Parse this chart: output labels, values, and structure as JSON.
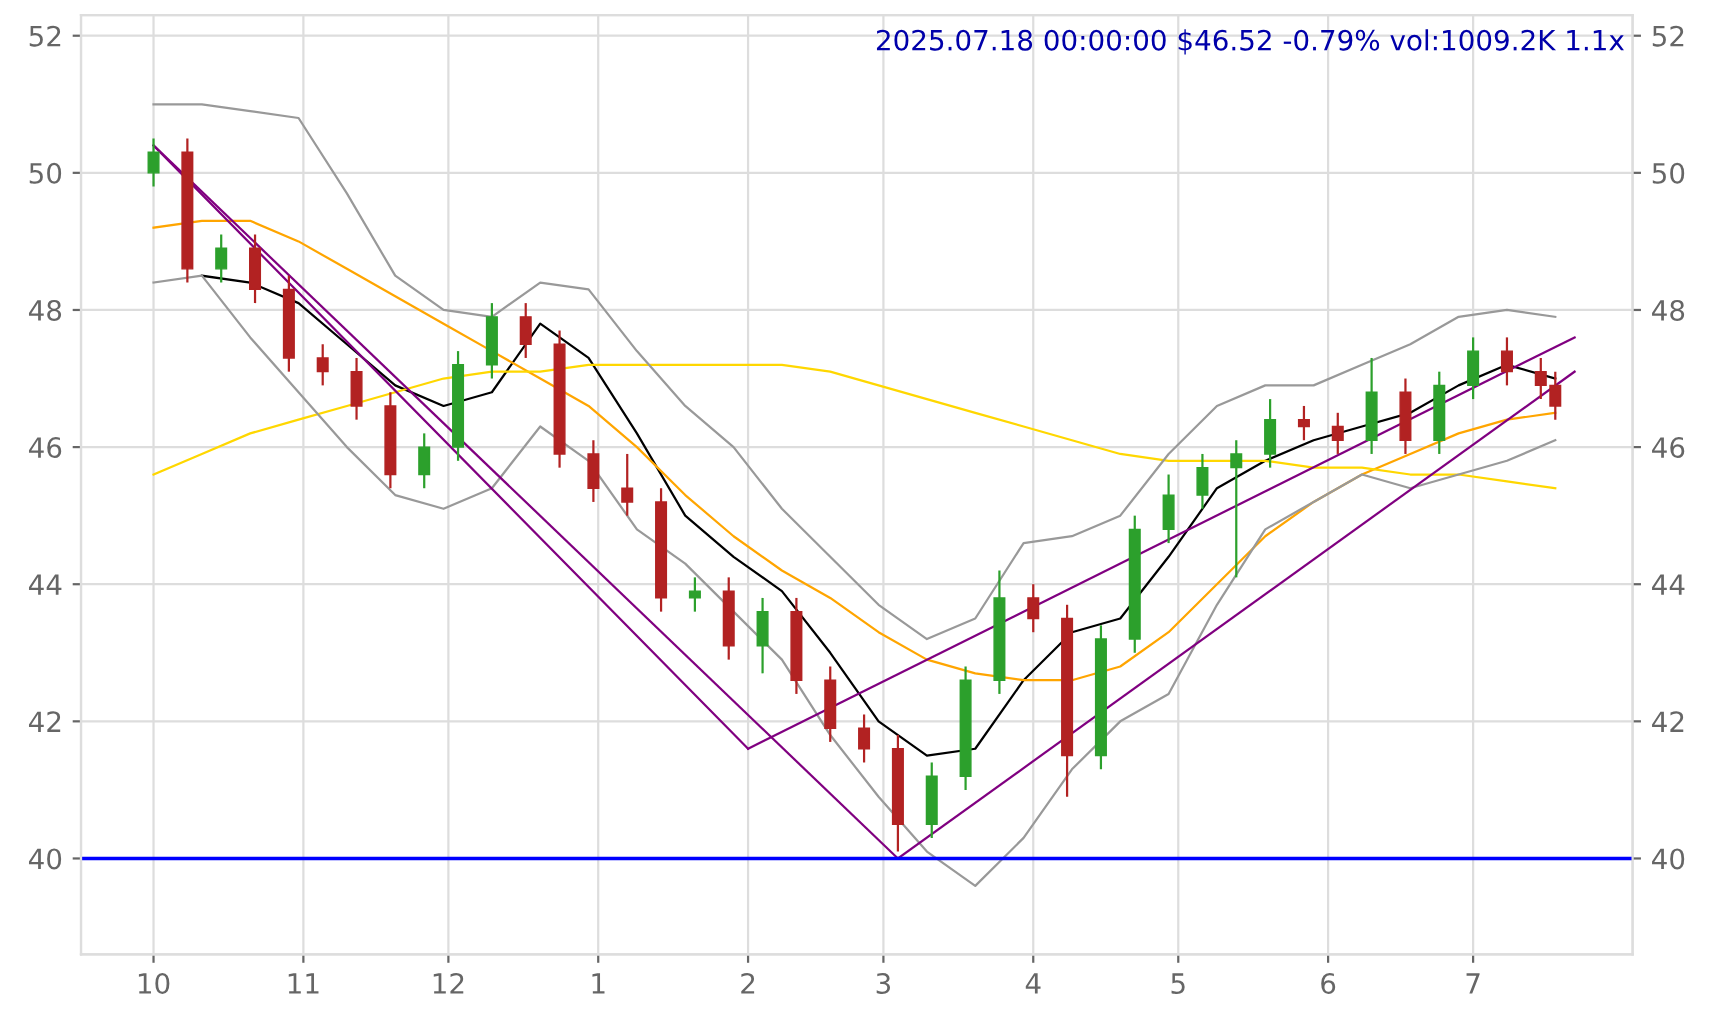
{
  "chart_data": {
    "type": "candlestick",
    "annotations": [
      "2025.07.18 00:00:00 $46.52 -0.79% vol:1009.2K 1.1x"
    ],
    "x": [
      "2024-10-01",
      "2024-10-08",
      "2024-10-15",
      "2024-10-22",
      "2024-10-29",
      "2024-11-05",
      "2024-11-12",
      "2024-11-19",
      "2024-11-26",
      "2024-12-03",
      "2024-12-10",
      "2024-12-17",
      "2024-12-24",
      "2024-12-31",
      "2025-01-07",
      "2025-01-14",
      "2025-01-21",
      "2025-01-28",
      "2025-02-04",
      "2025-02-11",
      "2025-02-18",
      "2025-02-25",
      "2025-03-04",
      "2025-03-11",
      "2025-03-18",
      "2025-03-25",
      "2025-04-01",
      "2025-04-08",
      "2025-04-15",
      "2025-04-22",
      "2025-04-29",
      "2025-05-06",
      "2025-05-13",
      "2025-05-20",
      "2025-05-27",
      "2025-06-03",
      "2025-06-10",
      "2025-06-17",
      "2025-06-24",
      "2025-07-01",
      "2025-07-08",
      "2025-07-15",
      "2025-07-18"
    ],
    "ohlc": [
      [
        50.0,
        50.5,
        49.8,
        50.3
      ],
      [
        50.3,
        50.5,
        48.4,
        48.6
      ],
      [
        48.6,
        49.1,
        48.4,
        48.9
      ],
      [
        48.9,
        49.1,
        48.1,
        48.3
      ],
      [
        48.3,
        48.5,
        47.1,
        47.3
      ],
      [
        47.3,
        47.5,
        46.9,
        47.1
      ],
      [
        47.1,
        47.3,
        46.4,
        46.6
      ],
      [
        46.6,
        46.8,
        45.4,
        45.6
      ],
      [
        45.6,
        46.2,
        45.4,
        46.0
      ],
      [
        46.0,
        47.4,
        45.8,
        47.2
      ],
      [
        47.2,
        48.1,
        47.0,
        47.9
      ],
      [
        47.9,
        48.1,
        47.3,
        47.5
      ],
      [
        47.5,
        47.7,
        45.7,
        45.9
      ],
      [
        45.9,
        46.1,
        45.2,
        45.4
      ],
      [
        45.4,
        45.9,
        45.0,
        45.2
      ],
      [
        45.2,
        45.4,
        43.6,
        43.8
      ],
      [
        43.8,
        44.1,
        43.6,
        43.9
      ],
      [
        43.9,
        44.1,
        42.9,
        43.1
      ],
      [
        43.1,
        43.8,
        42.7,
        43.6
      ],
      [
        43.6,
        43.8,
        42.4,
        42.6
      ],
      [
        42.6,
        42.8,
        41.7,
        41.9
      ],
      [
        41.9,
        42.1,
        41.4,
        41.6
      ],
      [
        41.6,
        41.8,
        40.1,
        40.5
      ],
      [
        40.5,
        41.4,
        40.3,
        41.2
      ],
      [
        41.2,
        42.8,
        41.0,
        42.6
      ],
      [
        42.6,
        44.2,
        42.4,
        43.8
      ],
      [
        43.8,
        44.0,
        43.3,
        43.5
      ],
      [
        43.5,
        43.7,
        40.9,
        41.5
      ],
      [
        41.5,
        43.4,
        41.3,
        43.2
      ],
      [
        43.2,
        45.0,
        43.0,
        44.8
      ],
      [
        44.8,
        45.6,
        44.6,
        45.3
      ],
      [
        45.3,
        45.9,
        45.1,
        45.7
      ],
      [
        45.7,
        46.1,
        44.1,
        45.9
      ],
      [
        45.9,
        46.7,
        45.7,
        46.4
      ],
      [
        46.4,
        46.6,
        46.1,
        46.3
      ],
      [
        46.3,
        46.5,
        45.9,
        46.1
      ],
      [
        46.1,
        47.3,
        45.9,
        46.8
      ],
      [
        46.8,
        47.0,
        45.9,
        46.1
      ],
      [
        46.1,
        47.1,
        45.9,
        46.9
      ],
      [
        46.9,
        47.6,
        46.7,
        47.4
      ],
      [
        47.4,
        47.6,
        46.9,
        47.1
      ],
      [
        47.1,
        47.3,
        46.7,
        46.9
      ],
      [
        46.9,
        47.1,
        46.4,
        46.6
      ]
    ],
    "colors": [
      "#2ca02c",
      "#b22222",
      "#2ca02c",
      "#b22222",
      "#b22222",
      "#b22222",
      "#b22222",
      "#b22222",
      "#2ca02c",
      "#2ca02c",
      "#2ca02c",
      "#b22222",
      "#b22222",
      "#b22222",
      "#b22222",
      "#b22222",
      "#2ca02c",
      "#b22222",
      "#2ca02c",
      "#b22222",
      "#b22222",
      "#b22222",
      "#b22222",
      "#2ca02c",
      "#2ca02c",
      "#2ca02c",
      "#b22222",
      "#b22222",
      "#2ca02c",
      "#2ca02c",
      "#2ca02c",
      "#2ca02c",
      "#2ca02c",
      "#2ca02c",
      "#b22222",
      "#b22222",
      "#2ca02c",
      "#b22222",
      "#2ca02c",
      "#2ca02c",
      "#b22222",
      "#b22222",
      "#b22222"
    ],
    "series": [
      {
        "type": "line",
        "color": "#000000",
        "x": [
          "2024-10-11",
          "2024-10-21",
          "2024-10-31",
          "2024-11-10",
          "2024-11-20",
          "2024-11-30",
          "2024-12-10",
          "2024-12-20",
          "2024-12-30",
          "2025-01-09",
          "2025-01-19",
          "2025-01-29",
          "2025-02-08",
          "2025-02-18",
          "2025-02-28",
          "2025-03-10",
          "2025-03-20",
          "2025-03-30",
          "2025-04-09",
          "2025-04-19",
          "2025-04-29",
          "2025-05-09",
          "2025-05-19",
          "2025-05-29",
          "2025-06-08",
          "2025-06-18",
          "2025-06-28",
          "2025-07-08",
          "2025-07-18"
        ],
        "values": [
          48.5,
          48.4,
          48.1,
          47.5,
          46.9,
          46.6,
          46.8,
          47.8,
          47.3,
          46.2,
          45.0,
          44.4,
          43.9,
          43.0,
          42.0,
          41.5,
          41.6,
          42.6,
          43.3,
          43.5,
          44.4,
          45.4,
          45.8,
          46.1,
          46.3,
          46.5,
          46.9,
          47.2,
          47.0
        ]
      },
      {
        "type": "line",
        "color": "#ffa500",
        "x": [
          "2024-10-01",
          "2024-10-11",
          "2024-10-21",
          "2024-10-31",
          "2024-11-10",
          "2024-11-20",
          "2024-11-30",
          "2024-12-10",
          "2024-12-20",
          "2024-12-30",
          "2025-01-09",
          "2025-01-19",
          "2025-01-29",
          "2025-02-08",
          "2025-02-18",
          "2025-02-28",
          "2025-03-10",
          "2025-03-20",
          "2025-03-30",
          "2025-04-09",
          "2025-04-19",
          "2025-04-29",
          "2025-05-09",
          "2025-05-19",
          "2025-05-29",
          "2025-06-08",
          "2025-06-18",
          "2025-06-28",
          "2025-07-08",
          "2025-07-18"
        ],
        "values": [
          49.2,
          49.3,
          49.3,
          49.0,
          48.6,
          48.2,
          47.8,
          47.4,
          47.0,
          46.6,
          46.0,
          45.3,
          44.7,
          44.2,
          43.8,
          43.3,
          42.9,
          42.7,
          42.6,
          42.6,
          42.8,
          43.3,
          44.0,
          44.7,
          45.2,
          45.6,
          45.9,
          46.2,
          46.4,
          46.5
        ]
      },
      {
        "type": "line",
        "color": "#ffd700",
        "x": [
          "2024-10-01",
          "2024-10-11",
          "2024-10-21",
          "2024-10-31",
          "2024-11-10",
          "2024-11-20",
          "2024-11-30",
          "2024-12-10",
          "2024-12-20",
          "2024-12-30",
          "2025-01-09",
          "2025-01-19",
          "2025-01-29",
          "2025-02-08",
          "2025-02-18",
          "2025-02-28",
          "2025-03-10",
          "2025-03-20",
          "2025-03-30",
          "2025-04-09",
          "2025-04-19",
          "2025-04-29",
          "2025-05-09",
          "2025-05-19",
          "2025-05-29",
          "2025-06-08",
          "2025-06-18",
          "2025-06-28",
          "2025-07-08",
          "2025-07-18"
        ],
        "values": [
          45.6,
          45.9,
          46.2,
          46.4,
          46.6,
          46.8,
          47.0,
          47.1,
          47.1,
          47.2,
          47.2,
          47.2,
          47.2,
          47.2,
          47.1,
          46.9,
          46.7,
          46.5,
          46.3,
          46.1,
          45.9,
          45.8,
          45.8,
          45.8,
          45.7,
          45.7,
          45.6,
          45.6,
          45.5,
          45.4
        ]
      },
      {
        "type": "line",
        "color": "#999999",
        "x": [
          "2024-10-01",
          "2024-10-11",
          "2024-10-21",
          "2024-10-31",
          "2024-11-10",
          "2024-11-20",
          "2024-11-30",
          "2024-12-10",
          "2024-12-20",
          "2024-12-30",
          "2025-01-09",
          "2025-01-19",
          "2025-01-29",
          "2025-02-08",
          "2025-02-18",
          "2025-02-28",
          "2025-03-10",
          "2025-03-20",
          "2025-03-30",
          "2025-04-09",
          "2025-04-19",
          "2025-04-29",
          "2025-05-09",
          "2025-05-19",
          "2025-05-29",
          "2025-06-08",
          "2025-06-18",
          "2025-06-28",
          "2025-07-08",
          "2025-07-18"
        ],
        "values": [
          51.0,
          51.0,
          50.9,
          50.8,
          49.7,
          48.5,
          48.0,
          47.9,
          48.4,
          48.3,
          47.4,
          46.6,
          46.0,
          45.1,
          44.4,
          43.7,
          43.2,
          43.5,
          44.6,
          44.7,
          45.0,
          45.9,
          46.6,
          46.9,
          46.9,
          47.2,
          47.5,
          47.9,
          48.0,
          47.9
        ]
      },
      {
        "type": "line",
        "color": "#999999",
        "x": [
          "2024-10-01",
          "2024-10-11",
          "2024-10-21",
          "2024-10-31",
          "2024-11-10",
          "2024-11-20",
          "2024-11-30",
          "2024-12-10",
          "2024-12-20",
          "2024-12-30",
          "2025-01-09",
          "2025-01-19",
          "2025-01-29",
          "2025-02-08",
          "2025-02-18",
          "2025-02-28",
          "2025-03-10",
          "2025-03-20",
          "2025-03-30",
          "2025-04-09",
          "2025-04-19",
          "2025-04-29",
          "2025-05-09",
          "2025-05-19",
          "2025-05-29",
          "2025-06-08",
          "2025-06-18",
          "2025-06-28",
          "2025-07-08",
          "2025-07-18"
        ],
        "values": [
          48.4,
          48.5,
          47.6,
          46.8,
          46.0,
          45.3,
          45.1,
          45.4,
          46.3,
          45.8,
          44.8,
          44.3,
          43.6,
          42.9,
          41.8,
          40.9,
          40.1,
          39.6,
          40.3,
          41.3,
          42.0,
          42.4,
          43.7,
          44.8,
          45.2,
          45.6,
          45.4,
          45.6,
          45.8,
          46.1
        ]
      },
      {
        "type": "line",
        "color": "#800080",
        "x": [
          "2024-10-01",
          "2025-03-04"
        ],
        "values": [
          50.4,
          40.0
        ]
      },
      {
        "type": "line",
        "color": "#800080",
        "x": [
          "2024-10-01",
          "2025-02-01"
        ],
        "values": [
          50.4,
          41.6
        ]
      },
      {
        "type": "line",
        "color": "#800080",
        "x": [
          "2025-02-01",
          "2025-07-22"
        ],
        "values": [
          41.6,
          47.6
        ]
      },
      {
        "type": "line",
        "color": "#800080",
        "x": [
          "2025-03-04",
          "2025-07-22"
        ],
        "values": [
          40.0,
          47.1
        ]
      }
    ],
    "ref_lines": [
      {
        "axis": "y",
        "value": 40,
        "color": "#0000ff"
      }
    ],
    "xlim": [
      "2024-09-16",
      "2025-08-03"
    ],
    "xticks": [
      {
        "value": "2024-10-01",
        "label": "10"
      },
      {
        "value": "2024-11-01",
        "label": "11"
      },
      {
        "value": "2024-12-01",
        "label": "12"
      },
      {
        "value": "2025-01-01",
        "label": "1"
      },
      {
        "value": "2025-02-01",
        "label": "2"
      },
      {
        "value": "2025-03-01",
        "label": "3"
      },
      {
        "value": "2025-04-01",
        "label": "4"
      },
      {
        "value": "2025-05-01",
        "label": "5"
      },
      {
        "value": "2025-06-01",
        "label": "6"
      },
      {
        "value": "2025-07-01",
        "label": "7"
      }
    ],
    "ylim": [
      38.6,
      52.3
    ],
    "yticks": [
      40,
      42,
      44,
      46,
      48,
      50,
      52
    ],
    "y2lim": [
      38.6,
      52.3
    ],
    "y2ticks": [
      40,
      42,
      44,
      46,
      48,
      50,
      52
    ],
    "grid": true
  }
}
